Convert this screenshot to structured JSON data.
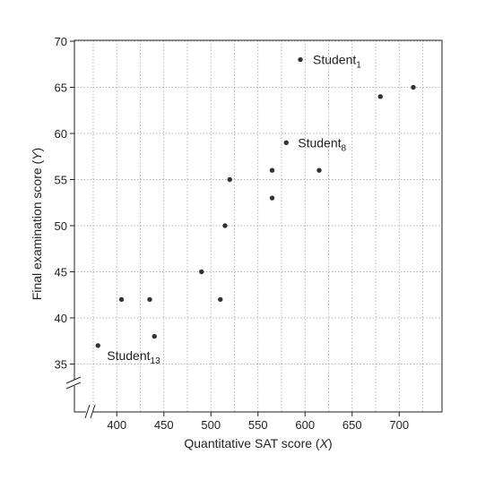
{
  "chart_data": {
    "type": "scatter",
    "xlabel_main": "Quantitative SAT score (",
    "xlabel_var": "X",
    "xlabel_end": ")",
    "ylabel_main": "Final examination score (",
    "ylabel_var": "Y",
    "ylabel_end": ")",
    "xlim": [
      355,
      750
    ],
    "ylim": [
      30,
      70
    ],
    "x_ticks": [
      400,
      450,
      500,
      550,
      600,
      650,
      700
    ],
    "y_ticks": [
      35,
      40,
      45,
      50,
      55,
      60,
      65,
      70
    ],
    "x_tick_labels": [
      "400",
      "450",
      "500",
      "550",
      "600",
      "650",
      "700"
    ],
    "y_tick_labels": [
      "35",
      "40",
      "45",
      "50",
      "55",
      "60",
      "65",
      "70"
    ],
    "grid": true,
    "axis_breaks": [
      "x",
      "y"
    ],
    "points": [
      {
        "x": 595,
        "y": 68
      },
      {
        "x": 715,
        "y": 65
      },
      {
        "x": 680,
        "y": 64
      },
      {
        "x": 580,
        "y": 59
      },
      {
        "x": 565,
        "y": 56
      },
      {
        "x": 615,
        "y": 56
      },
      {
        "x": 520,
        "y": 55
      },
      {
        "x": 565,
        "y": 53
      },
      {
        "x": 515,
        "y": 50
      },
      {
        "x": 490,
        "y": 45
      },
      {
        "x": 405,
        "y": 42
      },
      {
        "x": 435,
        "y": 42
      },
      {
        "x": 510,
        "y": 42
      },
      {
        "x": 440,
        "y": 38
      },
      {
        "x": 380,
        "y": 37
      }
    ],
    "annotations": [
      {
        "text": "Student",
        "sub": "1",
        "x": 595,
        "y": 68,
        "dx": 14,
        "dy": 5
      },
      {
        "text": "Student",
        "sub": "8",
        "x": 580,
        "y": 59,
        "dx": 13,
        "dy": 5
      },
      {
        "text": "Student",
        "sub": "13",
        "x": 380,
        "y": 37,
        "dx": 10,
        "dy": 16
      }
    ]
  }
}
